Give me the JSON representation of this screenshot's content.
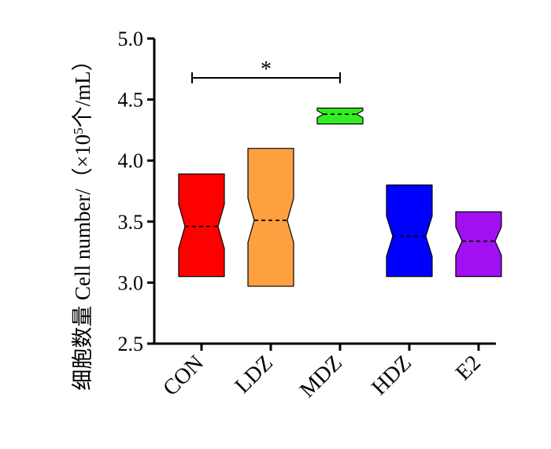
{
  "chart_data": {
    "type": "box",
    "title": "",
    "xlabel": "",
    "ylabel": "细胞数量 Cell number/（×10",
    "ylabel_sup": "5",
    "ylabel_suffix": "个/mL）",
    "ylim": [
      2.5,
      5.0
    ],
    "yticks": [
      2.5,
      3.0,
      3.5,
      4.0,
      4.5,
      5.0
    ],
    "ytick_labels": [
      "2.5",
      "3.0",
      "3.5",
      "4.0",
      "4.5",
      "5.0"
    ],
    "categories": [
      "CON",
      "LDZ",
      "MDZ",
      "HDZ",
      "E2"
    ],
    "boxes": [
      {
        "category": "CON",
        "min": 3.05,
        "max": 3.89,
        "median": 3.46,
        "color": "#ff0000"
      },
      {
        "category": "LDZ",
        "min": 2.97,
        "max": 4.1,
        "median": 3.51,
        "color": "#ffa040"
      },
      {
        "category": "MDZ",
        "min": 4.3,
        "max": 4.43,
        "median": 4.38,
        "color": "#33ee22"
      },
      {
        "category": "HDZ",
        "min": 3.05,
        "max": 3.8,
        "median": 3.38,
        "color": "#0000ff"
      },
      {
        "category": "E2",
        "min": 3.05,
        "max": 3.58,
        "median": 3.34,
        "color": "#a010f0"
      }
    ],
    "significance": [
      {
        "from": "CON",
        "to": "MDZ",
        "label": "*"
      }
    ],
    "grid": false,
    "legend": "none"
  }
}
